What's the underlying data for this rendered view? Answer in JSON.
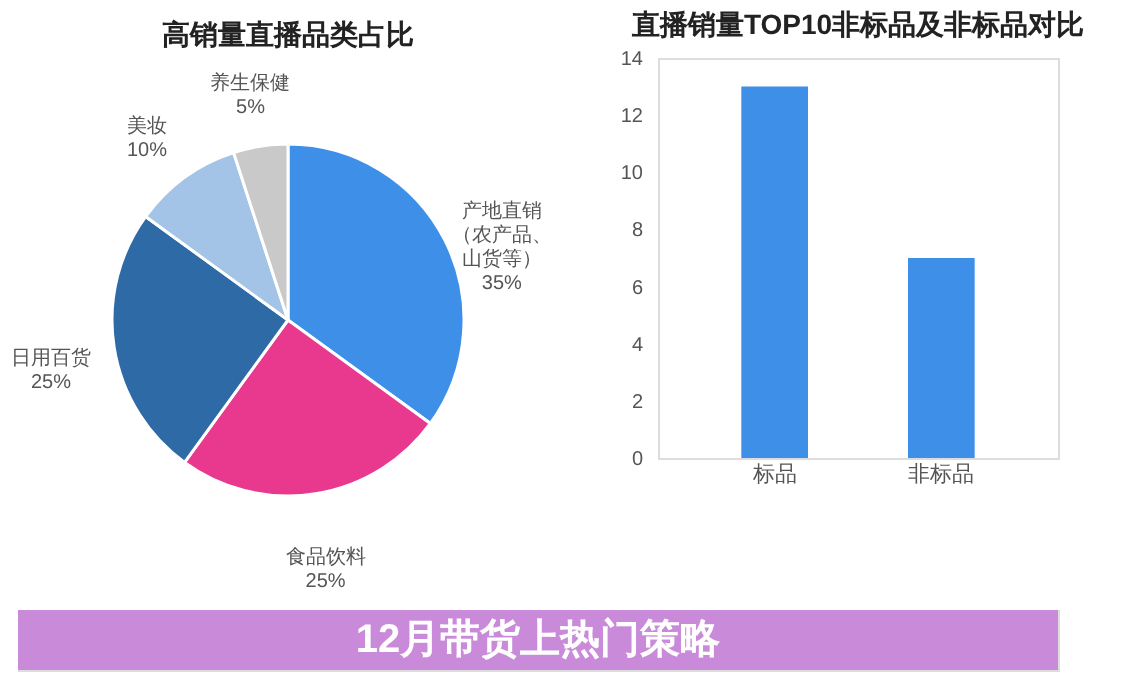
{
  "chart_data": [
    {
      "type": "pie",
      "title": "高销量直播品类占比",
      "categories": [
        "产地直销（农产品、山货等）",
        "食品饮料",
        "日用百货",
        "美妆",
        "养生保健"
      ],
      "values": [
        35,
        25,
        25,
        10,
        5
      ],
      "value_labels": [
        "35%",
        "25%",
        "25%",
        "10%",
        "5%"
      ],
      "colors": [
        "#3d8fe8",
        "#e8398f",
        "#2e6aa6",
        "#a3c4e6",
        "#c9c9c9"
      ],
      "legend": false,
      "annotations": [
        "12月带货上热门策略"
      ]
    },
    {
      "type": "bar",
      "title": "直播销量TOP10非标品及非标品对比",
      "categories": [
        "标品",
        "非标品"
      ],
      "values": [
        13,
        7
      ],
      "color": "#3d8fe8",
      "ylim": [
        0,
        14
      ],
      "yticks": [
        0,
        2,
        4,
        6,
        8,
        10,
        12,
        14
      ],
      "grid": false
    }
  ]
}
